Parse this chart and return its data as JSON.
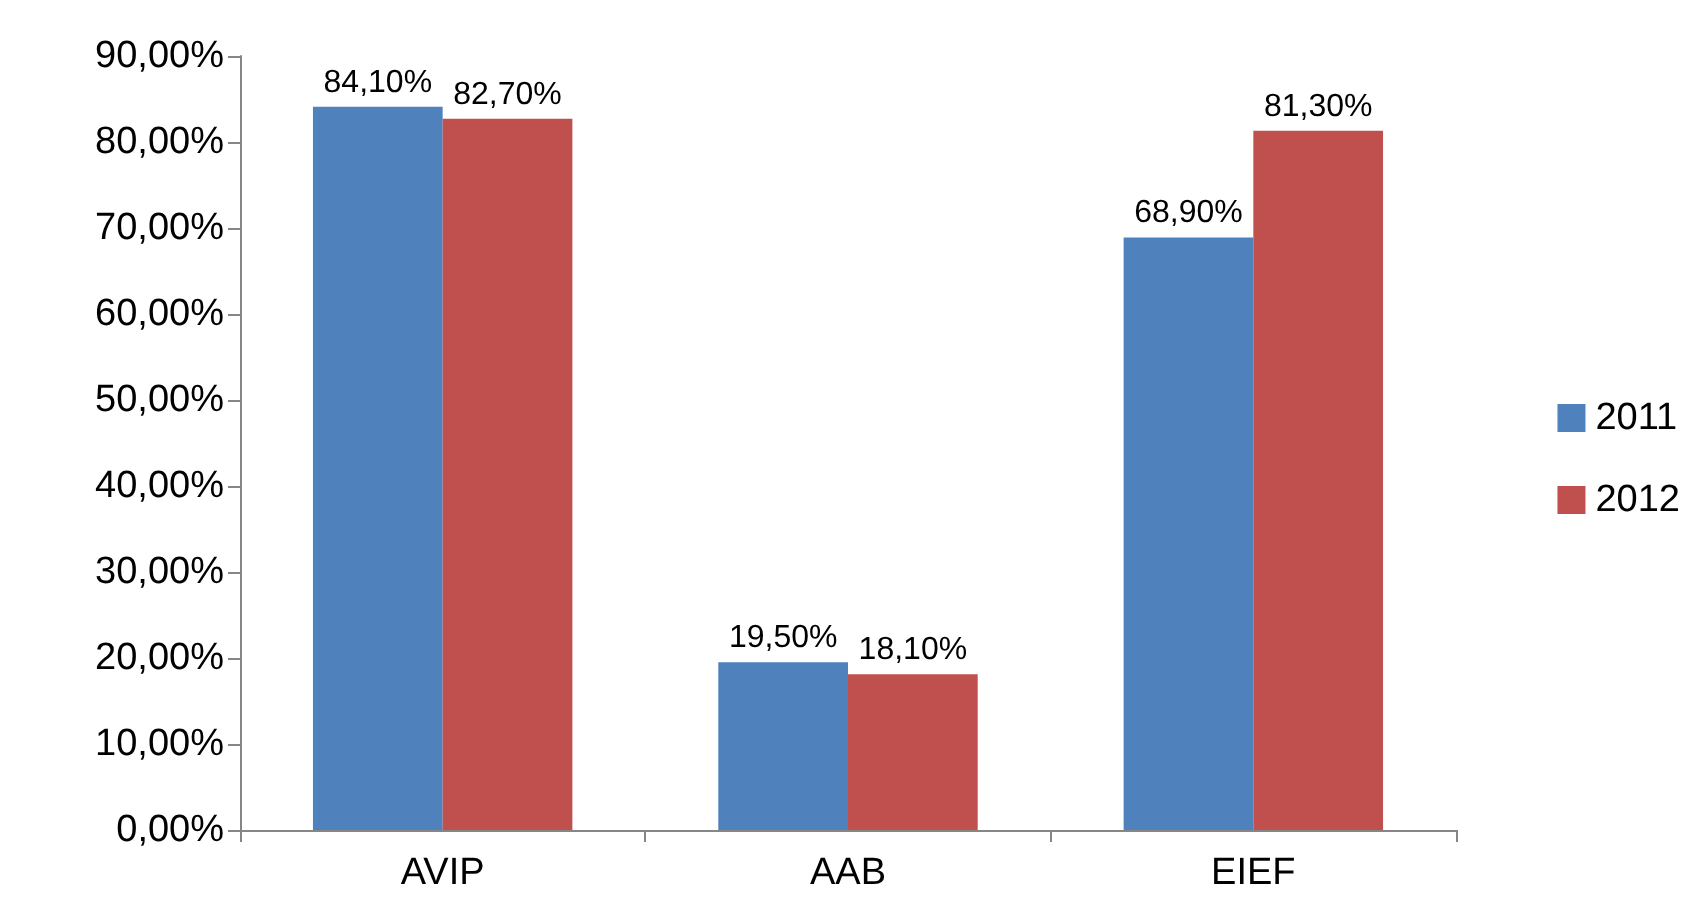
{
  "chart_data": {
    "type": "bar",
    "categories": [
      "AVIP",
      "AAB",
      "EIEF"
    ],
    "series": [
      {
        "name": "2011",
        "color": "#4f81bd",
        "values": [
          84.1,
          19.5,
          68.9
        ],
        "value_labels": [
          "84,10%",
          "19,50%",
          "68,90%"
        ]
      },
      {
        "name": "2012",
        "color": "#c0504d",
        "values": [
          82.7,
          18.1,
          81.3
        ],
        "value_labels": [
          "82,70%",
          "18,10%",
          "81,30%"
        ]
      }
    ],
    "ylim": [
      0,
      90
    ],
    "yticks": [
      {
        "value": 0,
        "label": "0,00%"
      },
      {
        "value": 10,
        "label": "10,00%"
      },
      {
        "value": 20,
        "label": "20,00%"
      },
      {
        "value": 30,
        "label": "30,00%"
      },
      {
        "value": 40,
        "label": "40,00%"
      },
      {
        "value": 50,
        "label": "50,00%"
      },
      {
        "value": 60,
        "label": "60,00%"
      },
      {
        "value": 70,
        "label": "70,00%"
      },
      {
        "value": 80,
        "label": "80,00%"
      },
      {
        "value": 90,
        "label": "90,00%"
      }
    ],
    "grid": false,
    "legend": "right"
  }
}
